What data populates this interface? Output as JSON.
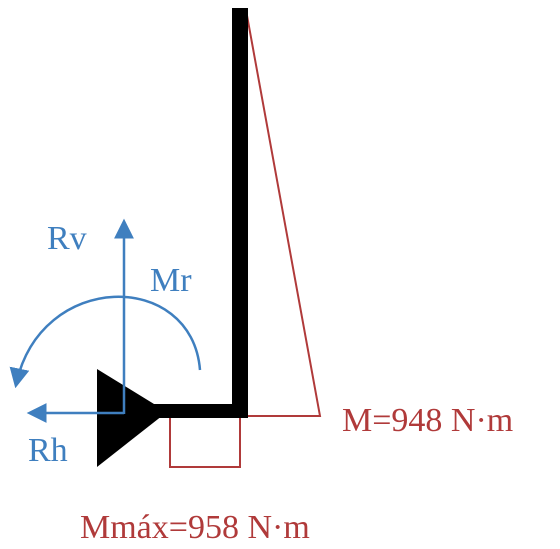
{
  "labels": {
    "vertical_reaction": "Rv",
    "horizontal_reaction": "Rh",
    "reaction_moment": "Mr",
    "moment_at_corner": "M=948 N·m",
    "max_moment": "Mmáx=958 N·m"
  },
  "colors": {
    "structure": "#000000",
    "reactions": "#3f7fbf",
    "moment_diagram": "#b03a3a",
    "background": "#ffffff"
  },
  "icons": {
    "support": "fixed-support-triangle-icon",
    "vertical_reaction": "arrow-up-icon",
    "horizontal_reaction": "arrow-left-icon",
    "reaction_moment": "curved-arrow-counterclockwise-icon"
  }
}
